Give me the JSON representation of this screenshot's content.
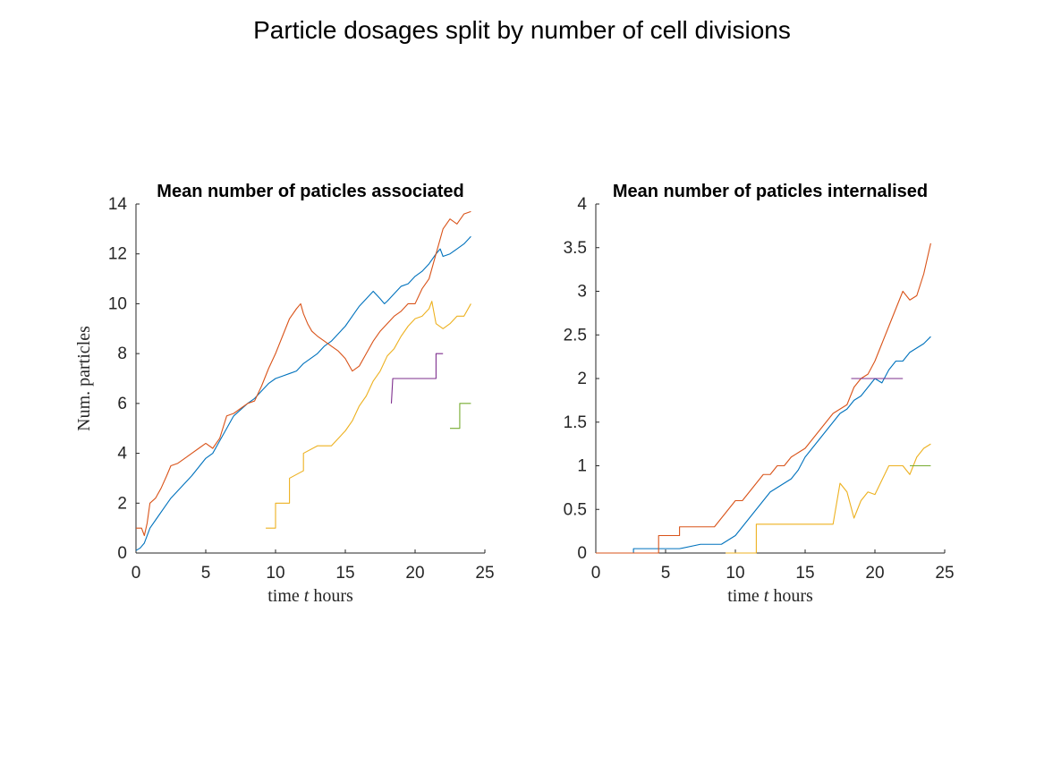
{
  "figure": {
    "title": "Particle dosages split by number of cell divisions"
  },
  "colors": [
    "#0072BD",
    "#D95319",
    "#EDB120",
    "#7E2F8E",
    "#77AC30"
  ],
  "chart_data": [
    {
      "type": "line",
      "title": "Mean number of paticles associated",
      "xlabel_pre": "time ",
      "xlabel_var": "t",
      "xlabel_post": " hours",
      "ylabel": "Num. particles",
      "xlim": [
        0,
        25
      ],
      "ylim": [
        0,
        14
      ],
      "xticks": [
        0,
        5,
        10,
        15,
        20,
        25
      ],
      "yticks": [
        0,
        2,
        4,
        6,
        8,
        10,
        12,
        14
      ],
      "xtick_labels": [
        "0",
        "5",
        "10",
        "15",
        "20",
        "25"
      ],
      "ytick_labels": [
        "0",
        "2",
        "4",
        "6",
        "8",
        "10",
        "12",
        "14"
      ],
      "grid": false,
      "series": [
        {
          "color": "#0072BD",
          "x": [
            0,
            0.3,
            0.6,
            1,
            1.5,
            2,
            2.5,
            3,
            4,
            5,
            5.5,
            6,
            6.5,
            7,
            8,
            8.5,
            9,
            9.5,
            10,
            10.5,
            11,
            11.5,
            12,
            13,
            13.5,
            14,
            14.5,
            15,
            15.5,
            16,
            16.5,
            17,
            17.5,
            17.8,
            18,
            18.5,
            19,
            19.5,
            20,
            20.5,
            21,
            21.5,
            21.8,
            22,
            22.5,
            23,
            23.5,
            24
          ],
          "y": [
            0.1,
            0.2,
            0.4,
            1,
            1.4,
            1.8,
            2.2,
            2.5,
            3.1,
            3.8,
            4,
            4.5,
            5,
            5.5,
            6,
            6.2,
            6.5,
            6.8,
            7,
            7.1,
            7.2,
            7.3,
            7.6,
            8,
            8.3,
            8.5,
            8.8,
            9.1,
            9.5,
            9.9,
            10.2,
            10.5,
            10.2,
            10,
            10.1,
            10.4,
            10.7,
            10.8,
            11.1,
            11.3,
            11.6,
            12,
            12.2,
            11.9,
            12,
            12.2,
            12.4,
            12.7
          ]
        },
        {
          "color": "#D95319",
          "x": [
            0,
            0.4,
            0.6,
            0.8,
            1,
            1.4,
            1.8,
            2.2,
            2.5,
            3,
            3.5,
            4,
            4.5,
            5,
            5.5,
            6,
            6.5,
            7,
            8,
            8.5,
            9,
            9.5,
            10,
            10.5,
            11,
            11.5,
            11.8,
            12,
            12.3,
            12.6,
            13,
            13.5,
            14,
            14.5,
            15,
            15.5,
            16,
            16.5,
            17,
            17.5,
            18,
            18.5,
            19,
            19.5,
            20,
            20.5,
            21,
            21.5,
            22,
            22.5,
            23,
            23.5,
            24
          ],
          "y": [
            1,
            1,
            0.7,
            1.2,
            2,
            2.2,
            2.6,
            3.1,
            3.5,
            3.6,
            3.8,
            4,
            4.2,
            4.4,
            4.2,
            4.6,
            5.5,
            5.6,
            6,
            6.1,
            6.7,
            7.4,
            8,
            8.7,
            9.4,
            9.8,
            10,
            9.6,
            9.2,
            8.9,
            8.7,
            8.5,
            8.3,
            8.1,
            7.8,
            7.3,
            7.5,
            8,
            8.5,
            8.9,
            9.2,
            9.5,
            9.7,
            10,
            10,
            10.6,
            11,
            12,
            13,
            13.4,
            13.2,
            13.6,
            13.7
          ]
        },
        {
          "color": "#EDB120",
          "x": [
            9.3,
            10,
            10,
            11,
            11,
            12,
            12,
            13,
            14,
            15,
            15.5,
            16,
            16.5,
            17,
            17.5,
            18,
            18.5,
            19,
            19.5,
            20,
            20.5,
            21,
            21.2,
            21.5,
            22,
            22.5,
            23,
            23.5,
            24
          ],
          "y": [
            1,
            1,
            2,
            2,
            3,
            3.3,
            4,
            4.3,
            4.3,
            4.9,
            5.3,
            5.9,
            6.3,
            6.9,
            7.3,
            7.9,
            8.2,
            8.7,
            9.1,
            9.4,
            9.5,
            9.8,
            10.1,
            9.2,
            9,
            9.2,
            9.5,
            9.5,
            10
          ]
        },
        {
          "color": "#7E2F8E",
          "x": [
            18.3,
            18.4,
            21.5,
            21.5,
            22
          ],
          "y": [
            6,
            7,
            7,
            8,
            8
          ]
        },
        {
          "color": "#77AC30",
          "x": [
            22.5,
            23.2,
            23.2,
            24
          ],
          "y": [
            5,
            5,
            6,
            6
          ]
        }
      ]
    },
    {
      "type": "line",
      "title": "Mean number of paticles internalised",
      "xlabel_pre": "time ",
      "xlabel_var": "t",
      "xlabel_post": " hours",
      "ylabel": "",
      "xlim": [
        0,
        25
      ],
      "ylim": [
        0,
        4
      ],
      "xticks": [
        0,
        5,
        10,
        15,
        20,
        25
      ],
      "yticks": [
        0,
        0.5,
        1,
        1.5,
        2,
        2.5,
        3,
        3.5,
        4
      ],
      "xtick_labels": [
        "0",
        "5",
        "10",
        "15",
        "20",
        "25"
      ],
      "ytick_labels": [
        "0",
        "0.5",
        "1",
        "1.5",
        "2",
        "2.5",
        "3",
        "3.5",
        "4"
      ],
      "grid": false,
      "series": [
        {
          "color": "#0072BD",
          "x": [
            0,
            2.7,
            2.7,
            5,
            6,
            7.5,
            9,
            9.5,
            10,
            10.5,
            11,
            11.5,
            12,
            12.5,
            13,
            13.5,
            14,
            14.5,
            15,
            15.5,
            16,
            16.5,
            17,
            17.5,
            18,
            18.5,
            19,
            19.5,
            20,
            20.5,
            21,
            21.5,
            22,
            22.5,
            23,
            23.5,
            24
          ],
          "y": [
            0,
            0,
            0.05,
            0.05,
            0.05,
            0.1,
            0.1,
            0.15,
            0.2,
            0.3,
            0.4,
            0.5,
            0.6,
            0.7,
            0.75,
            0.8,
            0.85,
            0.95,
            1.1,
            1.2,
            1.3,
            1.4,
            1.5,
            1.6,
            1.65,
            1.75,
            1.8,
            1.9,
            2.0,
            1.95,
            2.1,
            2.2,
            2.2,
            2.3,
            2.35,
            2.4,
            2.48
          ]
        },
        {
          "color": "#D95319",
          "x": [
            0,
            4.5,
            4.5,
            5.5,
            6,
            6,
            7,
            8.5,
            9,
            9.5,
            10,
            10.5,
            11,
            11.5,
            12,
            12.5,
            13,
            13.5,
            14,
            14.5,
            15,
            15.5,
            16,
            16.5,
            17,
            17.5,
            18,
            18.5,
            19,
            19.5,
            20,
            20.5,
            21,
            21.5,
            22,
            22.5,
            23,
            23.5,
            24
          ],
          "y": [
            0,
            0,
            0.2,
            0.2,
            0.2,
            0.3,
            0.3,
            0.3,
            0.4,
            0.5,
            0.6,
            0.6,
            0.7,
            0.8,
            0.9,
            0.9,
            1.0,
            1.0,
            1.1,
            1.15,
            1.2,
            1.3,
            1.4,
            1.5,
            1.6,
            1.65,
            1.7,
            1.9,
            2.0,
            2.05,
            2.2,
            2.4,
            2.6,
            2.8,
            3.0,
            2.9,
            2.95,
            3.2,
            3.55
          ]
        },
        {
          "color": "#EDB120",
          "x": [
            9.3,
            11.5,
            11.5,
            17,
            17.5,
            18,
            18.5,
            19,
            19.5,
            20,
            21,
            22,
            22.5,
            23,
            23.5,
            24
          ],
          "y": [
            0,
            0,
            0.33,
            0.33,
            0.8,
            0.7,
            0.4,
            0.6,
            0.7,
            0.67,
            1.0,
            1.0,
            0.9,
            1.1,
            1.2,
            1.25
          ]
        },
        {
          "color": "#7E2F8E",
          "x": [
            18.3,
            22
          ],
          "y": [
            2,
            2
          ]
        },
        {
          "color": "#77AC30",
          "x": [
            22.5,
            24
          ],
          "y": [
            1,
            1
          ]
        }
      ]
    }
  ]
}
